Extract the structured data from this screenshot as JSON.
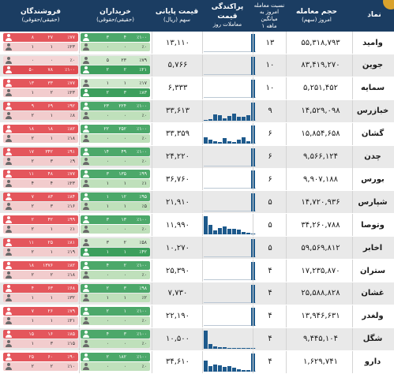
{
  "header": {
    "symbol": "نماد",
    "volume": "حجم معامله",
    "volume_sub": "امروز (سهم)",
    "ratio": "نسبت معامله",
    "ratio_sub": "امروز به میانگین",
    "ratio_sub2": "۱ ماهه",
    "dispersion": "پراکندگی قیمت",
    "dispersion_sub": "معاملات روز",
    "price": "قیمت پایانی",
    "price_sub": "سهم (ریال)",
    "buyers": "خریداران",
    "buyers_sub": "(حقیقی/حقوقی)",
    "sellers": "فروشندگان",
    "sellers_sub": "(حقیقی/حقوقی)"
  },
  "colors": {
    "header": "#1b3d62",
    "bar": "#1e5a8c",
    "buy": "#3d9f5d",
    "sell": "#df4b51"
  },
  "rows": [
    {
      "symbol": "وامید",
      "volume": "۵۵,۳۱۸,۷۹۳",
      "ratio": "۱۳",
      "price": "۱۳,۱۱۰",
      "bars": [
        0,
        0,
        0,
        0,
        0,
        0,
        0,
        0,
        0,
        0,
        1
      ],
      "buy": {
        "top": [
          "٪۱۰۰",
          "۴",
          "۳"
        ],
        "bot": [
          "٪۰",
          "۰",
          "۰"
        ],
        "hot": "top"
      },
      "sell": {
        "top": [
          "٪۷۷",
          "۲۷",
          "۸"
        ],
        "bot": [
          "٪۲۳",
          "۱",
          "۱"
        ],
        "hot": "top"
      }
    },
    {
      "symbol": "جوین",
      "volume": "۸۳,۴۱۹,۲۷۰",
      "ratio": "۱۰",
      "price": "۵,۷۶۶",
      "bars": [
        0,
        0,
        0,
        0,
        0,
        0,
        0,
        0,
        0,
        0,
        1
      ],
      "buy": {
        "top": [
          "٪۷۹",
          "۲۳",
          "۵"
        ],
        "bot": [
          "٪۲۱",
          "۲",
          "۲"
        ],
        "hot": "bot"
      },
      "sell": {
        "top": [
          "٪۰",
          "۰",
          "۰"
        ],
        "bot": [
          "٪۱۰۰",
          "۷۸",
          "۵۰"
        ],
        "hot": "bot"
      }
    },
    {
      "symbol": "سمایه",
      "volume": "۵,۲۵۱,۴۵۲",
      "ratio": "۱۰",
      "price": "۶,۳۳۳",
      "bars": [
        0,
        0,
        0,
        0,
        0,
        0,
        0,
        0,
        0,
        0,
        1
      ],
      "buy": {
        "top": [
          "٪۱۷",
          "۱",
          "۱"
        ],
        "bot": [
          "٪۸۳",
          "۳",
          "۲"
        ],
        "hot": "bot"
      },
      "sell": {
        "top": [
          "٪۷۷",
          "۳۳",
          "۱۳"
        ],
        "bot": [
          "٪۲۳",
          "۲",
          "۱"
        ],
        "hot": "top"
      }
    },
    {
      "symbol": "خبازرس",
      "volume": "۱۴,۵۲۹,۰۹۸",
      "ratio": "۹",
      "price": "۳۳,۶۱۳",
      "bars": [
        0.05,
        0.1,
        0.35,
        0.3,
        0.15,
        0.25,
        0.4,
        0.2,
        0.2,
        0.3,
        1
      ],
      "buy": {
        "top": [
          "٪۱۰۰",
          "۲۲۴",
          "۲۳"
        ],
        "bot": [
          "٪۰",
          "۰",
          "۰"
        ],
        "hot": "top"
      },
      "sell": {
        "top": [
          "٪۹۲",
          "۶۹",
          "۹"
        ],
        "bot": [
          "٪۸",
          "۱",
          "۲"
        ],
        "hot": "top"
      }
    },
    {
      "symbol": "گشان",
      "volume": "۱۵,۸۵۴,۶۵۸",
      "ratio": "۶",
      "price": "۳۳,۳۵۹",
      "bars": [
        0.35,
        0.2,
        0.15,
        0.1,
        0.3,
        0.15,
        0.1,
        0.2,
        0.35,
        0.15,
        1
      ],
      "buy": {
        "top": [
          "٪۱۰۰",
          "۲۵۲",
          "۲۲"
        ],
        "bot": [
          "٪۰",
          "۰",
          "۰"
        ],
        "hot": "top"
      },
      "sell": {
        "top": [
          "٪۸۲",
          "۱۸",
          "۱۸"
        ],
        "bot": [
          "٪۱۸",
          "۱",
          "۲"
        ],
        "hot": "top"
      }
    },
    {
      "symbol": "چدن",
      "volume": "۹,۵۶۶,۱۲۴",
      "ratio": "۶",
      "price": "۲۴,۲۲۰",
      "bars": [
        0,
        0,
        0,
        0,
        0,
        0,
        0,
        0,
        0,
        0,
        1
      ],
      "buy": {
        "top": [
          "٪۱۰۰",
          "۴۹",
          "۱۴"
        ],
        "bot": [
          "٪۰",
          "۰",
          "۰"
        ],
        "hot": "top"
      },
      "sell": {
        "top": [
          "٪۹۱",
          "۳۴۲",
          "۱۷"
        ],
        "bot": [
          "٪۹",
          "۳",
          "۲"
        ],
        "hot": "top"
      }
    },
    {
      "symbol": "بورس",
      "volume": "۹,۹۰۷,۱۸۸",
      "ratio": "۶",
      "price": "۳۶,۷۶۰",
      "bars": [
        0,
        0,
        0,
        0,
        0,
        0,
        0,
        0,
        0,
        0,
        1
      ],
      "buy": {
        "top": [
          "٪۹۹",
          "۱۳۵",
          "۳"
        ],
        "bot": [
          "٪۱",
          "۱",
          "۱"
        ],
        "hot": "top"
      },
      "sell": {
        "top": [
          "٪۷۷",
          "۴۸",
          "۱۱"
        ],
        "bot": [
          "٪۲۳",
          "۴",
          "۴"
        ],
        "hot": "top"
      }
    },
    {
      "symbol": "شپارس",
      "volume": "۱۴,۷۲۰,۹۳۶",
      "ratio": "۵",
      "price": "۲۱,۹۱۰",
      "bars": [
        0,
        0,
        0,
        0,
        0,
        0,
        0,
        0,
        0,
        0,
        1
      ],
      "buy": {
        "top": [
          "٪۹۵",
          "۱۲",
          "۱"
        ],
        "bot": [
          "٪۵",
          "۱",
          "۱"
        ],
        "hot": "top"
      },
      "sell": {
        "top": [
          "٪۸۴",
          "۸۳",
          "۷"
        ],
        "bot": [
          "٪۱۶",
          "۳",
          "۲"
        ],
        "hot": "top"
      }
    },
    {
      "symbol": "وتوصا",
      "volume": "۳۴,۲۶۰,۷۸۸",
      "ratio": "۵",
      "price": "۱۱,۹۹۰",
      "bars": [
        1,
        0.5,
        0.2,
        0.35,
        0.45,
        0.3,
        0.3,
        0.25,
        0.15,
        0.1,
        0.05
      ],
      "buy": {
        "top": [
          "٪۱۰۰",
          "۱۳",
          "۳"
        ],
        "bot": [
          "٪۰",
          "۰",
          "۰"
        ],
        "hot": "top"
      },
      "sell": {
        "top": [
          "٪۹۹",
          "۴۲",
          "۲"
        ],
        "bot": [
          "٪۱",
          "۱",
          "۲"
        ],
        "hot": "top"
      }
    },
    {
      "symbol": "اخابر",
      "volume": "۵۹,۵۶۹,۸۱۲",
      "ratio": "۵",
      "price": "۱۰,۲۷۰",
      "bars": [
        0,
        0,
        0,
        0,
        0,
        0,
        0,
        0,
        0,
        0,
        1
      ],
      "buy": {
        "top": [
          "٪۵۸",
          "۲",
          "۳"
        ],
        "bot": [
          "٪۴۲",
          "۱",
          "۱"
        ],
        "hot": "bot"
      },
      "sell": {
        "top": [
          "٪۸۱",
          "۲۵",
          "۱۱"
        ],
        "bot": [
          "٪۱۹",
          "۱",
          "۲"
        ],
        "hot": "top"
      }
    },
    {
      "symbol": "ستران",
      "volume": "۱۷,۲۳۵,۸۷۰",
      "ratio": "۴",
      "price": "۲۵,۳۹۰",
      "bars": [
        0,
        0,
        0,
        0,
        0,
        0,
        0,
        0,
        0,
        0,
        1
      ],
      "buy": {
        "top": [
          "٪۱۰۰",
          "۲",
          "۴"
        ],
        "bot": [
          "٪۰",
          "۰",
          "۰"
        ],
        "hot": "top"
      },
      "sell": {
        "top": [
          "٪۸۲",
          "۱۳۷۶",
          "۱۸"
        ],
        "bot": [
          "٪۱۸",
          "۲",
          "۲"
        ],
        "hot": "top"
      }
    },
    {
      "symbol": "غشان",
      "volume": "۲۵,۵۸۸,۸۲۸",
      "ratio": "۴",
      "price": "۷,۷۳۰",
      "bars": [
        0,
        0,
        0,
        0,
        0,
        0,
        0,
        0,
        0,
        0,
        1
      ],
      "buy": {
        "top": [
          "٪۹۸",
          "۳",
          "۲"
        ],
        "bot": [
          "٪۲",
          "۱",
          "۱"
        ],
        "hot": "top"
      },
      "sell": {
        "top": [
          "٪۶۸",
          "۶۳",
          "۴"
        ],
        "bot": [
          "٪۳۲",
          "۱",
          "۱"
        ],
        "hot": "top"
      }
    },
    {
      "symbol": "ولغدر",
      "volume": "۱۳,۹۴۶,۶۳۱",
      "ratio": "۴",
      "price": "۲۲,۱۹۰",
      "bars": [
        0,
        0,
        0,
        0,
        0,
        0,
        0,
        0,
        0,
        0,
        1
      ],
      "buy": {
        "top": [
          "٪۱۰۰",
          "۱",
          "۲"
        ],
        "bot": [
          "٪۰",
          "۰",
          "۰"
        ],
        "hot": "top"
      },
      "sell": {
        "top": [
          "٪۷۹",
          "۲۶",
          "۷"
        ],
        "bot": [
          "٪۲۱",
          "۱",
          "۱"
        ],
        "hot": "top"
      }
    },
    {
      "symbol": "شگل",
      "volume": "۹,۴۴۵,۱۰۴",
      "ratio": "۴",
      "price": "۱۰,۵۰۰",
      "bars": [
        1,
        0.25,
        0.15,
        0.1,
        0.08,
        0.06,
        0.05,
        0.05,
        0.04,
        0.03,
        0.02
      ],
      "buy": {
        "top": [
          "٪۱۰۰",
          "۳",
          "۴"
        ],
        "bot": [
          "٪۰",
          "۰",
          "۰"
        ],
        "hot": "top"
      },
      "sell": {
        "top": [
          "٪۸۵",
          "۱۶",
          "۱۵"
        ],
        "bot": [
          "٪۱۵",
          "۳",
          "۱"
        ],
        "hot": "top"
      }
    },
    {
      "symbol": "دارو",
      "volume": "۱,۶۲۹,۷۴۱",
      "ratio": "۴",
      "price": "۳۴,۶۱۰",
      "bars": [
        0.6,
        0.3,
        0.4,
        0.35,
        0.25,
        0.3,
        0.2,
        0.15,
        0.1,
        0.1,
        1
      ],
      "buy": {
        "top": [
          "٪۱۰۰",
          "۱۸۲",
          "۲"
        ],
        "bot": [
          "٪۰",
          "۰",
          "۰"
        ],
        "hot": "top"
      },
      "sell": {
        "top": [
          "٪۹۰",
          "۶۰",
          "۲۵"
        ],
        "bot": [
          "٪۱۰",
          "۲",
          "۲"
        ],
        "hot": "top"
      }
    }
  ]
}
